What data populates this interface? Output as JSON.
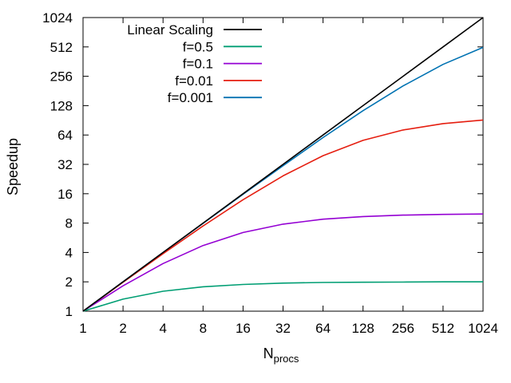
{
  "chart_data": {
    "type": "line",
    "xlabel_main": "N",
    "xlabel_sub": "procs",
    "ylabel": "Speedup",
    "x_scale": "log2",
    "y_scale": "log2",
    "xlim": [
      1,
      1024
    ],
    "ylim": [
      1,
      1024
    ],
    "grid": false,
    "legend_position": "top-left",
    "x_ticks": [
      "1",
      "2",
      "4",
      "8",
      "16",
      "32",
      "64",
      "128",
      "256",
      "512",
      "1024"
    ],
    "y_ticks": [
      "1",
      "2",
      "4",
      "8",
      "16",
      "32",
      "64",
      "128",
      "256",
      "512",
      "1024"
    ],
    "x": [
      1,
      2,
      4,
      8,
      16,
      32,
      64,
      128,
      256,
      512,
      1024
    ],
    "series": [
      {
        "name": "Linear Scaling",
        "color": "#000000",
        "values": [
          1,
          2,
          4,
          8,
          16,
          32,
          64,
          128,
          256,
          512,
          1024
        ]
      },
      {
        "name": "f=0.5",
        "color": "#009e73",
        "values": [
          1,
          1.33,
          1.6,
          1.78,
          1.88,
          1.94,
          1.97,
          1.98,
          1.99,
          2.0,
          2.0
        ]
      },
      {
        "name": "f=0.1",
        "color": "#9400d3",
        "values": [
          1,
          1.82,
          3.08,
          4.71,
          6.4,
          7.8,
          8.77,
          9.34,
          9.66,
          9.83,
          9.91
        ]
      },
      {
        "name": "f=0.01",
        "color": "#e51e10",
        "values": [
          1,
          1.98,
          3.88,
          7.48,
          13.9,
          24.4,
          39.3,
          56.4,
          72.1,
          83.8,
          91.2
        ]
      },
      {
        "name": "f=0.001",
        "color": "#0072b2",
        "values": [
          1,
          2.0,
          3.99,
          7.94,
          15.8,
          31.0,
          60.2,
          113.6,
          204.0,
          338.8,
          506.1
        ]
      }
    ]
  }
}
